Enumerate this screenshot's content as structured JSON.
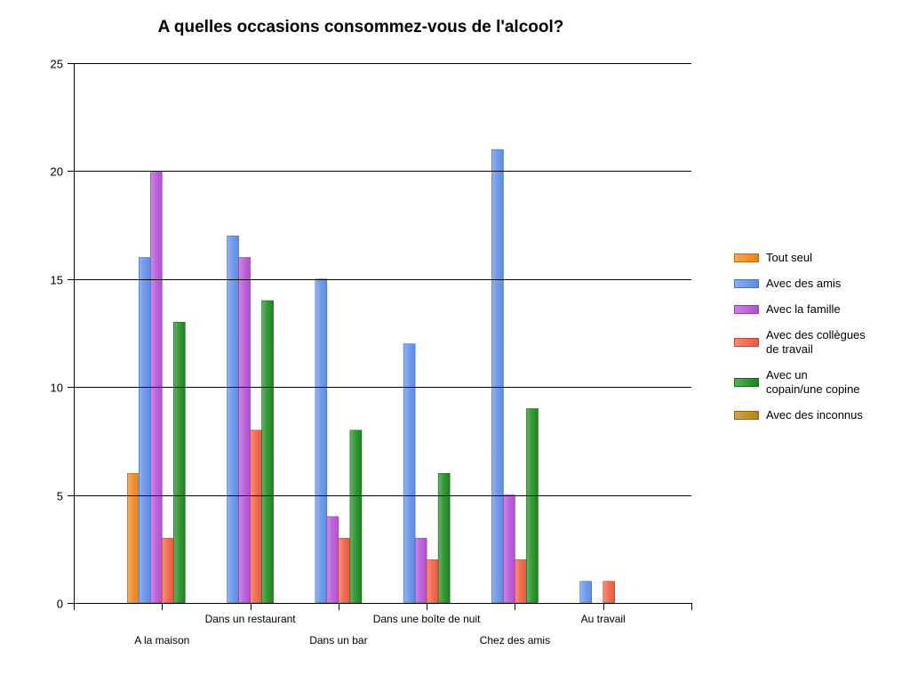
{
  "chart_data": {
    "type": "bar",
    "title": "A quelles occasions consommez-vous de l'alcool?",
    "categories": [
      "A la maison",
      "Dans un restaurant",
      "Dans un bar",
      "Dans une boîte de nuit",
      "Chez des amis",
      "Au travail"
    ],
    "series": [
      {
        "name": "Tout seul",
        "color": "#EC8212",
        "values": [
          6,
          0,
          0,
          0,
          0,
          0
        ]
      },
      {
        "name": "Avec des amis",
        "color": "#5B8CE6",
        "values": [
          16,
          17,
          15,
          12,
          21,
          1
        ]
      },
      {
        "name": "Avec la famille",
        "color": "#B24DD5",
        "values": [
          20,
          16,
          4,
          3,
          5,
          0
        ]
      },
      {
        "name": "Avec des collègues\nde travail",
        "color": "#EE583A",
        "values": [
          3,
          8,
          3,
          2,
          2,
          1
        ]
      },
      {
        "name": "Avec un\ncopain/une copine",
        "color": "#17871A",
        "values": [
          13,
          14,
          8,
          6,
          9,
          0
        ]
      },
      {
        "name": "Avec des inconnus",
        "color": "#B5820E",
        "values": [
          0,
          0,
          0,
          0,
          0,
          0
        ]
      }
    ],
    "ylim": [
      0,
      25
    ],
    "yticks": [
      0,
      5,
      10,
      15,
      20,
      25
    ],
    "grid": true,
    "legend": "right"
  }
}
